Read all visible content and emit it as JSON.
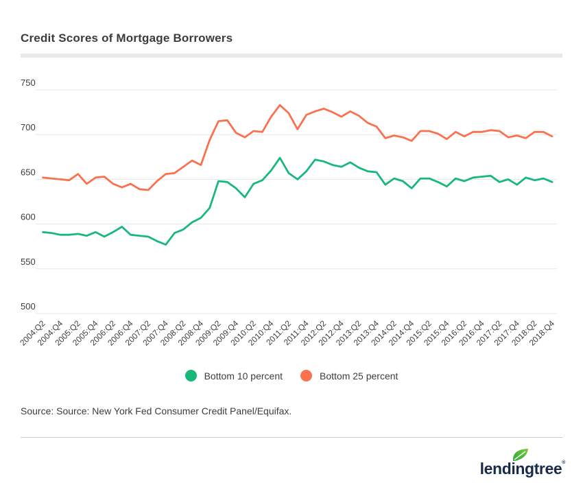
{
  "header": {
    "title": "Credit Scores of Mortgage Borrowers"
  },
  "chart_data": {
    "type": "line",
    "title": "Credit Scores of Mortgage Borrowers",
    "xlabel": "",
    "ylabel": "",
    "ylim": [
      500,
      750
    ],
    "yticks": [
      500,
      550,
      600,
      650,
      700,
      750
    ],
    "grid": true,
    "legend_position": "bottom",
    "xtick_labels": [
      "2004:Q2",
      "2004:Q4",
      "2005:Q2",
      "2005:Q4",
      "2006:Q2",
      "2006:Q4",
      "2007:Q2",
      "2007:Q4",
      "2008:Q2",
      "2008:Q4",
      "2009:Q2",
      "2009:Q4",
      "2010:Q2",
      "2010:Q4",
      "2011:Q2",
      "2011:Q4",
      "2012:Q2",
      "2012:Q4",
      "2013:Q2",
      "2013:Q4",
      "2014:Q2",
      "2014:Q4",
      "2015:Q2",
      "2015:Q4",
      "2016:Q2",
      "2016:Q4",
      "2017:Q2",
      "2017:Q4",
      "2018:Q2",
      "2018:Q4"
    ],
    "categories": [
      "2004:Q2",
      "2004:Q3",
      "2004:Q4",
      "2005:Q1",
      "2005:Q2",
      "2005:Q3",
      "2005:Q4",
      "2006:Q1",
      "2006:Q2",
      "2006:Q3",
      "2006:Q4",
      "2007:Q1",
      "2007:Q2",
      "2007:Q3",
      "2007:Q4",
      "2008:Q1",
      "2008:Q2",
      "2008:Q3",
      "2008:Q4",
      "2009:Q1",
      "2009:Q2",
      "2009:Q3",
      "2009:Q4",
      "2010:Q1",
      "2010:Q2",
      "2010:Q3",
      "2010:Q4",
      "2011:Q1",
      "2011:Q2",
      "2011:Q3",
      "2011:Q4",
      "2012:Q1",
      "2012:Q2",
      "2012:Q3",
      "2012:Q4",
      "2013:Q1",
      "2013:Q2",
      "2013:Q3",
      "2013:Q4",
      "2014:Q1",
      "2014:Q2",
      "2014:Q3",
      "2014:Q4",
      "2015:Q1",
      "2015:Q2",
      "2015:Q3",
      "2015:Q4",
      "2016:Q1",
      "2016:Q2",
      "2016:Q3",
      "2016:Q4",
      "2017:Q1",
      "2017:Q2",
      "2017:Q3",
      "2017:Q4",
      "2018:Q1",
      "2018:Q2",
      "2018:Q3",
      "2018:Q4"
    ],
    "series": [
      {
        "name": "Bottom 10 percent",
        "color": "#17b97a",
        "values": [
          591,
          590,
          588,
          588,
          589,
          587,
          591,
          586,
          591,
          597,
          588,
          587,
          586,
          581,
          577,
          590,
          594,
          602,
          607,
          618,
          648,
          647,
          640,
          630,
          645,
          649,
          660,
          674,
          657,
          650,
          659,
          672,
          670,
          666,
          664,
          669,
          663,
          659,
          658,
          644,
          651,
          648,
          640,
          651,
          651,
          647,
          642,
          651,
          648,
          652,
          653,
          654,
          647,
          650,
          644,
          652,
          649,
          651,
          647
        ]
      },
      {
        "name": "Bottom 25 percent",
        "color": "#f9714f",
        "values": [
          652,
          651,
          650,
          649,
          656,
          645,
          652,
          653,
          645,
          641,
          645,
          639,
          638,
          648,
          656,
          657,
          664,
          671,
          666,
          694,
          715,
          716,
          702,
          697,
          704,
          703,
          720,
          733,
          724,
          706,
          722,
          726,
          729,
          725,
          720,
          726,
          721,
          713,
          709,
          696,
          699,
          697,
          693,
          704,
          704,
          701,
          695,
          703,
          698,
          703,
          703,
          705,
          704,
          697,
          699,
          696,
          703,
          703,
          698
        ]
      }
    ]
  },
  "legend": {
    "items": [
      {
        "label": "Bottom 10 percent",
        "color": "#17b97a"
      },
      {
        "label": "Bottom 25 percent",
        "color": "#f9714f"
      }
    ]
  },
  "footer": {
    "source": "Source: Source: New York Fed Consumer Credit Panel/Equifax.",
    "logo_text": "lendingtree",
    "logo_reg": "®"
  }
}
